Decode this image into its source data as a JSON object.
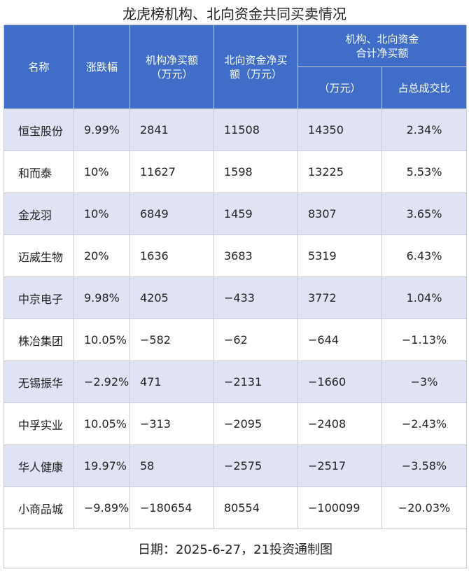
{
  "title": "龙虎榜机构、北向资金共同买卖情况",
  "header": {
    "name": "名称",
    "change": "涨跌幅",
    "inst_line1": "机构净买额",
    "inst_line2": "（万元）",
    "north_line1": "北向资金净买",
    "north_line2": "额（万元）",
    "combined_line1": "机构、北向资金",
    "combined_line2": "合计净买额",
    "combined_unit": "（万元）",
    "share": "占总成交比"
  },
  "rows": [
    {
      "name": "恒宝股份",
      "change": "9.99%",
      "inst": "2841",
      "north": "11508",
      "total": "14350",
      "ratio": "2.34%"
    },
    {
      "name": "和而泰",
      "change": "10%",
      "inst": "11627",
      "north": "1598",
      "total": "13225",
      "ratio": "5.53%"
    },
    {
      "name": "金龙羽",
      "change": "10%",
      "inst": "6849",
      "north": "1459",
      "total": "8307",
      "ratio": "3.65%"
    },
    {
      "name": "迈威生物",
      "change": "20%",
      "inst": "1636",
      "north": "3683",
      "total": "5319",
      "ratio": "6.43%"
    },
    {
      "name": "中京电子",
      "change": "9.98%",
      "inst": "4205",
      "north": "−433",
      "total": "3772",
      "ratio": "1.04%"
    },
    {
      "name": "株冶集团",
      "change": "10.05%",
      "inst": "−582",
      "north": "−62",
      "total": "−644",
      "ratio": "−1.13%"
    },
    {
      "name": "无锡振华",
      "change": "−2.92%",
      "inst": "471",
      "north": "−2131",
      "total": "−1660",
      "ratio": "−3%"
    },
    {
      "name": "中孚实业",
      "change": "10.05%",
      "inst": "−313",
      "north": "−2095",
      "total": "−2408",
      "ratio": "−2.43%"
    },
    {
      "name": "华人健康",
      "change": "19.97%",
      "inst": "58",
      "north": "−2575",
      "total": "−2517",
      "ratio": "−3.58%"
    },
    {
      "name": "小商品城",
      "change": "−9.89%",
      "inst": "−180654",
      "north": "80554",
      "total": "−100099",
      "ratio": "−20.03%"
    }
  ],
  "footer": "日期：2025-6-27，21投资通制图",
  "colors": {
    "header_bg": "#3f6dc8",
    "shade_row": "#dfe3f4",
    "plain_row": "#ffffff"
  }
}
